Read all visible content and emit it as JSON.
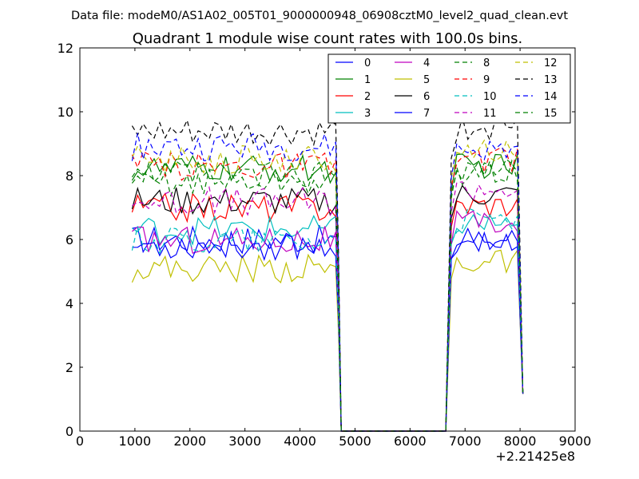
{
  "chart_data": {
    "type": "line",
    "supertitle": "Data file: modeM0/AS1A02_005T01_9000000948_06908cztM0_level2_quad_clean.evt",
    "title": "Quadrant 1 module wise count rates with 100.0s bins.",
    "xlabel": "",
    "ylabel": "",
    "x_offset_label": "+2.21425e8",
    "xlim": [
      0,
      9000
    ],
    "ylim": [
      0,
      12
    ],
    "x_ticks": [
      0,
      1000,
      2000,
      3000,
      4000,
      5000,
      6000,
      7000,
      8000,
      9000
    ],
    "x_tick_labels": [
      "0",
      "1000",
      "2000",
      "3000",
      "4000",
      "5000",
      "6000",
      "7000",
      "8000",
      "9000"
    ],
    "y_ticks": [
      0,
      2,
      4,
      6,
      8,
      10,
      12
    ],
    "y_tick_labels": [
      "0",
      "2",
      "4",
      "6",
      "8",
      "10",
      "12"
    ],
    "grid": false,
    "legend_position": "top-right",
    "gap_segments": [
      {
        "x": [
          4650,
          4700,
          4750,
          6650,
          6700,
          6750
        ],
        "y_from": "last",
        "desc": "drop to zero after first segment, flat zero, rise at second segment"
      }
    ],
    "x_seg1": [
      950,
      1050,
      1150,
      1250,
      1350,
      1450,
      1550,
      1650,
      1750,
      1850,
      1950,
      2050,
      2150,
      2250,
      2350,
      2450,
      2550,
      2650,
      2750,
      2850,
      2950,
      3050,
      3150,
      3250,
      3350,
      3450,
      3550,
      3650,
      3750,
      3850,
      3950,
      4050,
      4150,
      4250,
      4350,
      4450,
      4550,
      4650
    ],
    "x_seg2": [
      6650,
      6750,
      6850,
      6950,
      7050,
      7150,
      7250,
      7350,
      7450,
      7550,
      7650,
      7750,
      7850,
      7950,
      8050
    ],
    "series": [
      {
        "name": "0",
        "color": "#0000ff",
        "dash": "solid",
        "base1": 6.0,
        "base2": 6.0
      },
      {
        "name": "1",
        "color": "#008000",
        "dash": "solid",
        "base1": 8.2,
        "base2": 8.3
      },
      {
        "name": "2",
        "color": "#ff0000",
        "dash": "solid",
        "base1": 7.0,
        "base2": 7.1
      },
      {
        "name": "3",
        "color": "#00bfbf",
        "dash": "solid",
        "base1": 6.3,
        "base2": 6.5
      },
      {
        "name": "4",
        "color": "#bf00bf",
        "dash": "solid",
        "base1": 6.0,
        "base2": 6.5
      },
      {
        "name": "5",
        "color": "#bfbf00",
        "dash": "solid",
        "base1": 5.1,
        "base2": 5.3
      },
      {
        "name": "6",
        "color": "#000000",
        "dash": "solid",
        "base1": 7.2,
        "base2": 7.4
      },
      {
        "name": "7",
        "color": "#0000ff",
        "dash": "solid",
        "base1": 5.8,
        "base2": 6.0
      },
      {
        "name": "8",
        "color": "#008000",
        "dash": "dashed",
        "base1": 7.8,
        "base2": 8.1
      },
      {
        "name": "9",
        "color": "#ff0000",
        "dash": "dashed",
        "base1": 8.3,
        "base2": 8.5
      },
      {
        "name": "10",
        "color": "#00bfbf",
        "dash": "dashed",
        "base1": 6.0,
        "base2": 6.6
      },
      {
        "name": "11",
        "color": "#bf00bf",
        "dash": "dashed",
        "base1": 7.2,
        "base2": 7.6
      },
      {
        "name": "12",
        "color": "#bfbf00",
        "dash": "dashed",
        "base1": 8.5,
        "base2": 8.8
      },
      {
        "name": "13",
        "color": "#000000",
        "dash": "dashed",
        "base1": 9.3,
        "base2": 9.5
      },
      {
        "name": "14",
        "color": "#0000ff",
        "dash": "dashed",
        "base1": 8.9,
        "base2": 8.8
      },
      {
        "name": "15",
        "color": "#008000",
        "dash": "dashed",
        "base1": 8.0,
        "base2": 8.2
      }
    ]
  }
}
